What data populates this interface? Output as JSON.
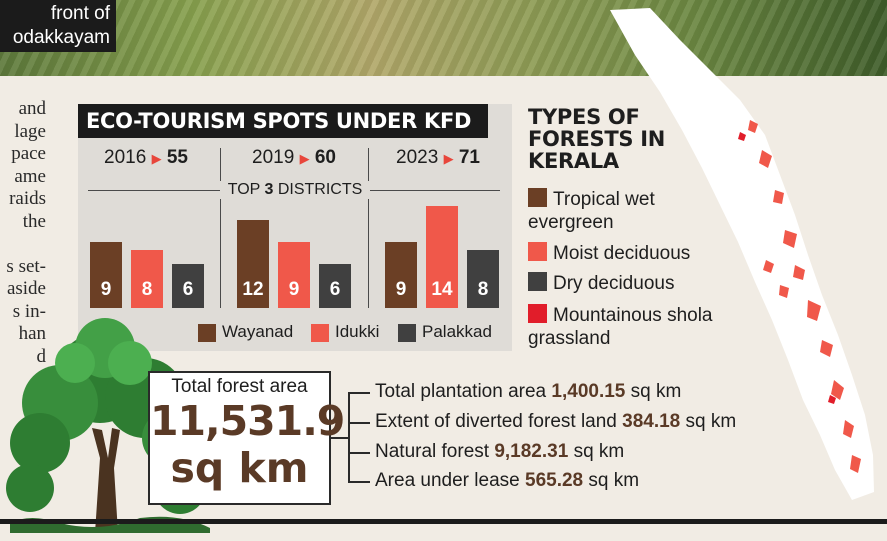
{
  "photo_caption": [
    "front of",
    "odakkayam"
  ],
  "body_text": [
    "and",
    "lage",
    "pace",
    "ame",
    "raids",
    "the",
    "",
    "s set-",
    "aside",
    "s in-",
    "han",
    "d",
    "",
    ""
  ],
  "panel": {
    "title": "ECO-TOURISM SPOTS UNDER KFD",
    "districts_label_pre": "TOP ",
    "districts_label_num": "3",
    "districts_label_post": " DISTRICTS"
  },
  "chart_data": {
    "type": "bar",
    "title": "ECO-TOURISM SPOTS UNDER KFD",
    "subtitle": "TOP 3 DISTRICTS",
    "groups": [
      {
        "year": "2016",
        "total": "55"
      },
      {
        "year": "2019",
        "total": "60"
      },
      {
        "year": "2023",
        "total": "71"
      }
    ],
    "categories": [
      "2016",
      "2019",
      "2023"
    ],
    "series": [
      {
        "name": "Wayanad",
        "color": "#6b3f25",
        "values": [
          9,
          12,
          9
        ]
      },
      {
        "name": "Idukki",
        "color": "#f0584a",
        "values": [
          8,
          9,
          14
        ]
      },
      {
        "name": "Palakkad",
        "color": "#404040",
        "values": [
          6,
          6,
          8
        ]
      }
    ],
    "ylim": [
      0,
      14
    ]
  },
  "forest_types": {
    "title": [
      "TYPES OF",
      "FORESTS IN",
      "KERALA"
    ],
    "items": [
      {
        "label": "Tropical wet",
        "label2": "evergreen",
        "color": "#6b3f25"
      },
      {
        "label": "Moist deciduous",
        "color": "#f0584a"
      },
      {
        "label": "Dry deciduous",
        "color": "#404040"
      },
      {
        "label": "Mountainous shola",
        "label2": "grassland",
        "color": "#e11d2a"
      }
    ]
  },
  "total": {
    "label": "Total forest area",
    "value": "11,531.9",
    "unit": "sq km"
  },
  "stats": [
    {
      "label": "Total plantation area ",
      "value": "1,400.15",
      "unit": " sq km"
    },
    {
      "label": "Extent of diverted forest land ",
      "value": "384.18",
      "unit": " sq km"
    },
    {
      "label": "Natural forest ",
      "value": "9,182.31",
      "unit": " sq km"
    },
    {
      "label": "Area under lease ",
      "value": "565.28",
      "unit": " sq km"
    }
  ]
}
